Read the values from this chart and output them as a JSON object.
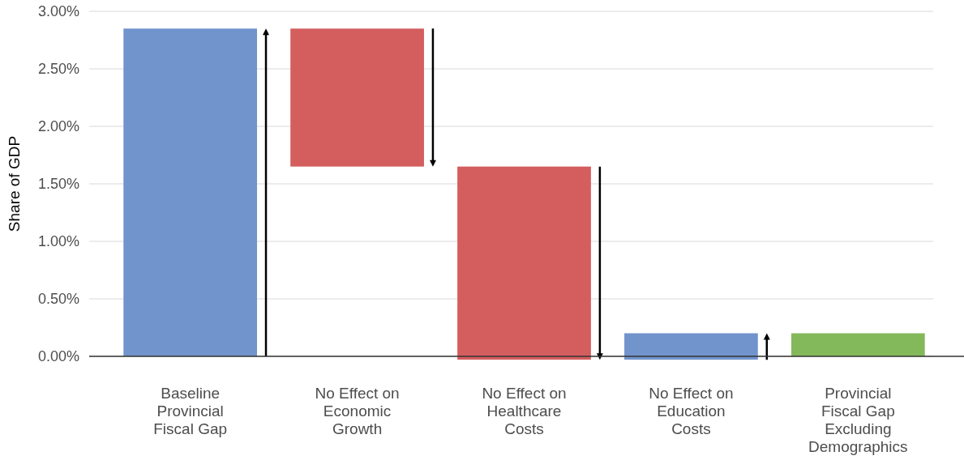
{
  "chart_data": {
    "type": "bar",
    "ylabel": "Share of GDP",
    "categories": [
      "Baseline Provincial Fiscal Gap",
      "No Effect on Economic Growth",
      "No Effect on Healthcare Costs",
      "No Effect on Education Costs",
      "Provincial Fiscal Gap Excluding Demographics"
    ],
    "values": [
      2.85,
      -1.2,
      -1.68,
      0.23,
      0.2
    ],
    "base": [
      0,
      2.85,
      1.65,
      -0.03,
      0
    ],
    "colors": [
      "#7294cc",
      "#d45d5e",
      "#d45d5e",
      "#7294cc",
      "#84b95b"
    ],
    "ylim": [
      -0.05,
      3.0
    ],
    "yticks": [
      {
        "value": 0,
        "label": "0.00%"
      },
      {
        "value": 0.5,
        "label": "0.50%"
      },
      {
        "value": 1,
        "label": "1.00%"
      },
      {
        "value": 1.5,
        "label": "1.50%"
      },
      {
        "value": 2,
        "label": "2.00%"
      },
      {
        "value": 2.5,
        "label": "2.50%"
      },
      {
        "value": 3,
        "label": "3.00%"
      }
    ],
    "grid": "y"
  }
}
